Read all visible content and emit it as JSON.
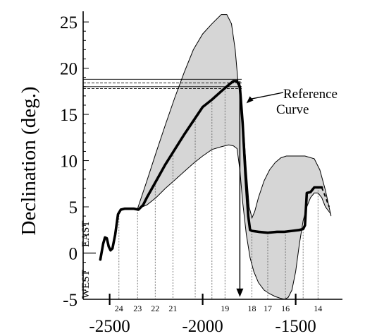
{
  "chart_data": {
    "type": "line",
    "title": "",
    "ylabel": "Declination (deg.)",
    "xlabel": "",
    "ylim": [
      -5,
      26
    ],
    "xlim": [
      -2900,
      -1150
    ],
    "x_ticks": [
      -2500,
      -2000,
      -1500
    ],
    "x_tick_labels": [
      "-2500",
      "-2000",
      "-1500"
    ],
    "y_ticks": [
      -5,
      0,
      5,
      10,
      15,
      20,
      25
    ],
    "y_tick_labels": [
      "-5",
      "0",
      "5",
      "10",
      "15",
      "20",
      "25"
    ],
    "grid": false,
    "legend": "none",
    "side_labels": {
      "west": "WEST",
      "east": "EAST"
    },
    "annotation": {
      "line1": "Reference",
      "line2": "Curve",
      "x": -1765,
      "y": 16.2
    },
    "period_markers": [
      {
        "label": "24",
        "x": -2450
      },
      {
        "label": "23",
        "x": -2350
      },
      {
        "label": "22",
        "x": -2255
      },
      {
        "label": "21",
        "x": -2160
      },
      {
        "label": "",
        "x": -2040
      },
      {
        "label": "",
        "x": -1950
      },
      {
        "label": "19",
        "x": -1880
      },
      {
        "label": "18",
        "x": -1735
      },
      {
        "label": "17",
        "x": -1650
      },
      {
        "label": "16",
        "x": -1555
      },
      {
        "label": "",
        "x": -1460
      },
      {
        "label": "14",
        "x": -1380
      }
    ],
    "reference_lines": [
      {
        "y": 18.8,
        "x_end": -1790,
        "style": "solid"
      },
      {
        "y": 18.4,
        "x_end": -1790,
        "style": "dashed"
      },
      {
        "y": 18.0,
        "x_end": -1790,
        "style": "solid"
      },
      {
        "y": 17.8,
        "x_end": -1790,
        "style": "dashed"
      }
    ],
    "arrow": {
      "x": -1800,
      "y_from": 18.6,
      "y_to": -4.6
    },
    "series": [
      {
        "role": "reference_curve",
        "x": [
          -2550,
          -2535,
          -2525,
          -2515,
          -2505,
          -2495,
          -2485,
          -2470,
          -2455,
          -2440,
          -2420,
          -2395,
          -2370,
          -2345,
          -2320,
          -2300,
          -2250,
          -2200,
          -2150,
          -2100,
          -2050,
          -2000,
          -1950,
          -1900,
          -1860,
          -1835,
          -1815,
          -1800,
          -1785,
          -1770,
          -1755,
          -1745,
          -1735,
          -1700,
          -1650,
          -1600,
          -1560,
          -1520,
          -1480,
          -1460,
          -1450,
          -1440,
          -1420,
          -1400,
          -1380,
          -1360
        ],
        "y": [
          -0.7,
          1.0,
          1.7,
          1.6,
          0.7,
          0.3,
          0.5,
          2.0,
          4.2,
          4.7,
          4.8,
          4.8,
          4.8,
          4.7,
          5.2,
          6.0,
          7.8,
          9.6,
          11.2,
          12.8,
          14.3,
          15.8,
          16.6,
          17.5,
          18.2,
          18.6,
          18.6,
          18.0,
          14.0,
          8.5,
          4.0,
          2.5,
          2.4,
          2.3,
          2.2,
          2.3,
          2.3,
          2.4,
          2.5,
          2.6,
          3.0,
          6.5,
          6.6,
          7.1,
          7.1,
          7.1
        ]
      },
      {
        "role": "dashed_extension",
        "x": [
          -1360,
          -1340,
          -1320
        ],
        "y": [
          7.1,
          6.1,
          5.0
        ]
      },
      {
        "role": "envelope_upper",
        "x": [
          -2350,
          -2300,
          -2250,
          -2200,
          -2150,
          -2100,
          -2050,
          -2000,
          -1950,
          -1900,
          -1870,
          -1845,
          -1825,
          -1810,
          -1795,
          -1780,
          -1765,
          -1750,
          -1735,
          -1720,
          -1700,
          -1670,
          -1640,
          -1610,
          -1580,
          -1550,
          -1500,
          -1450,
          -1400,
          -1370,
          -1340,
          -1310
        ],
        "y": [
          4.8,
          7.8,
          10.9,
          13.9,
          16.8,
          19.5,
          22.0,
          23.7,
          24.8,
          25.8,
          25.8,
          24.8,
          22.0,
          18.5,
          16.5,
          13.5,
          9.0,
          5.0,
          3.8,
          4.5,
          6.0,
          7.8,
          9.0,
          9.8,
          10.3,
          10.5,
          10.5,
          10.5,
          10.2,
          9.0,
          6.8,
          4.0
        ]
      },
      {
        "role": "envelope_lower",
        "x": [
          -2350,
          -2300,
          -2250,
          -2200,
          -2150,
          -2100,
          -2050,
          -2000,
          -1950,
          -1900,
          -1860,
          -1835,
          -1815,
          -1800,
          -1785,
          -1765,
          -1745,
          -1725,
          -1700,
          -1670,
          -1640,
          -1610,
          -1580,
          -1560,
          -1540,
          -1520,
          -1500,
          -1480,
          -1460,
          -1440,
          -1420,
          -1400,
          -1380,
          -1360,
          -1340,
          -1310
        ],
        "y": [
          4.8,
          5.2,
          6.0,
          7.0,
          7.9,
          8.8,
          9.7,
          10.5,
          11.2,
          11.5,
          11.7,
          11.6,
          11.3,
          9.0,
          5.5,
          2.0,
          -0.5,
          -2.0,
          -3.2,
          -4.0,
          -4.4,
          -4.7,
          -4.9,
          -5.0,
          -4.8,
          -4.0,
          -2.0,
          1.0,
          3.5,
          5.0,
          6.0,
          6.5,
          6.5,
          6.0,
          5.0,
          4.2
        ]
      }
    ]
  }
}
